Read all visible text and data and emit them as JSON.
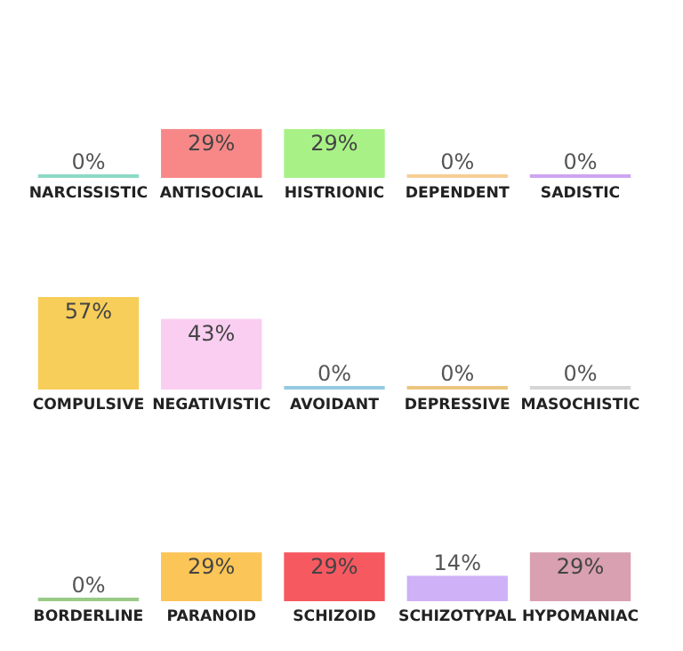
{
  "chart_data": [
    {
      "type": "bar",
      "categories": [
        "NARCISSISTIC",
        "ANTISOCIAL",
        "HISTRIONIC",
        "DEPENDENT",
        "SADISTIC"
      ],
      "values": [
        0,
        29,
        29,
        0,
        0
      ],
      "value_labels": [
        "0%",
        "29%",
        "29%",
        "0%",
        "0%"
      ],
      "colors": [
        "#7fd6c0",
        "#f77b7b",
        "#9ef07a",
        "#f5c98a",
        "#c89af0"
      ],
      "tick_labels": "x"
    },
    {
      "type": "bar",
      "categories": [
        "COMPULSIVE",
        "NEGATIVISTIC",
        "AVOIDANT",
        "DEPRESSIVE",
        "MASOCHISTIC"
      ],
      "values": [
        57,
        43,
        0,
        0,
        0
      ],
      "value_labels": [
        "57%",
        "43%",
        "0%",
        "0%",
        "0%"
      ],
      "colors": [
        "#f7c948",
        "#f9c9ef",
        "#8ac4e0",
        "#e8c070",
        "#d0d0d0"
      ],
      "tick_labels": "x"
    },
    {
      "type": "bar",
      "categories": [
        "BORDERLINE",
        "PARANOID",
        "SCHIZOID",
        "SCHIZOTYPAL",
        "HYPOMANIAC"
      ],
      "values": [
        0,
        29,
        29,
        14,
        29
      ],
      "value_labels": [
        "0%",
        "29%",
        "29%",
        "14%",
        "29%"
      ],
      "colors": [
        "#8fc47a",
        "#fbbf45",
        "#f5474f",
        "#c9a8f5",
        "#d496a8"
      ],
      "tick_labels": "x"
    }
  ]
}
